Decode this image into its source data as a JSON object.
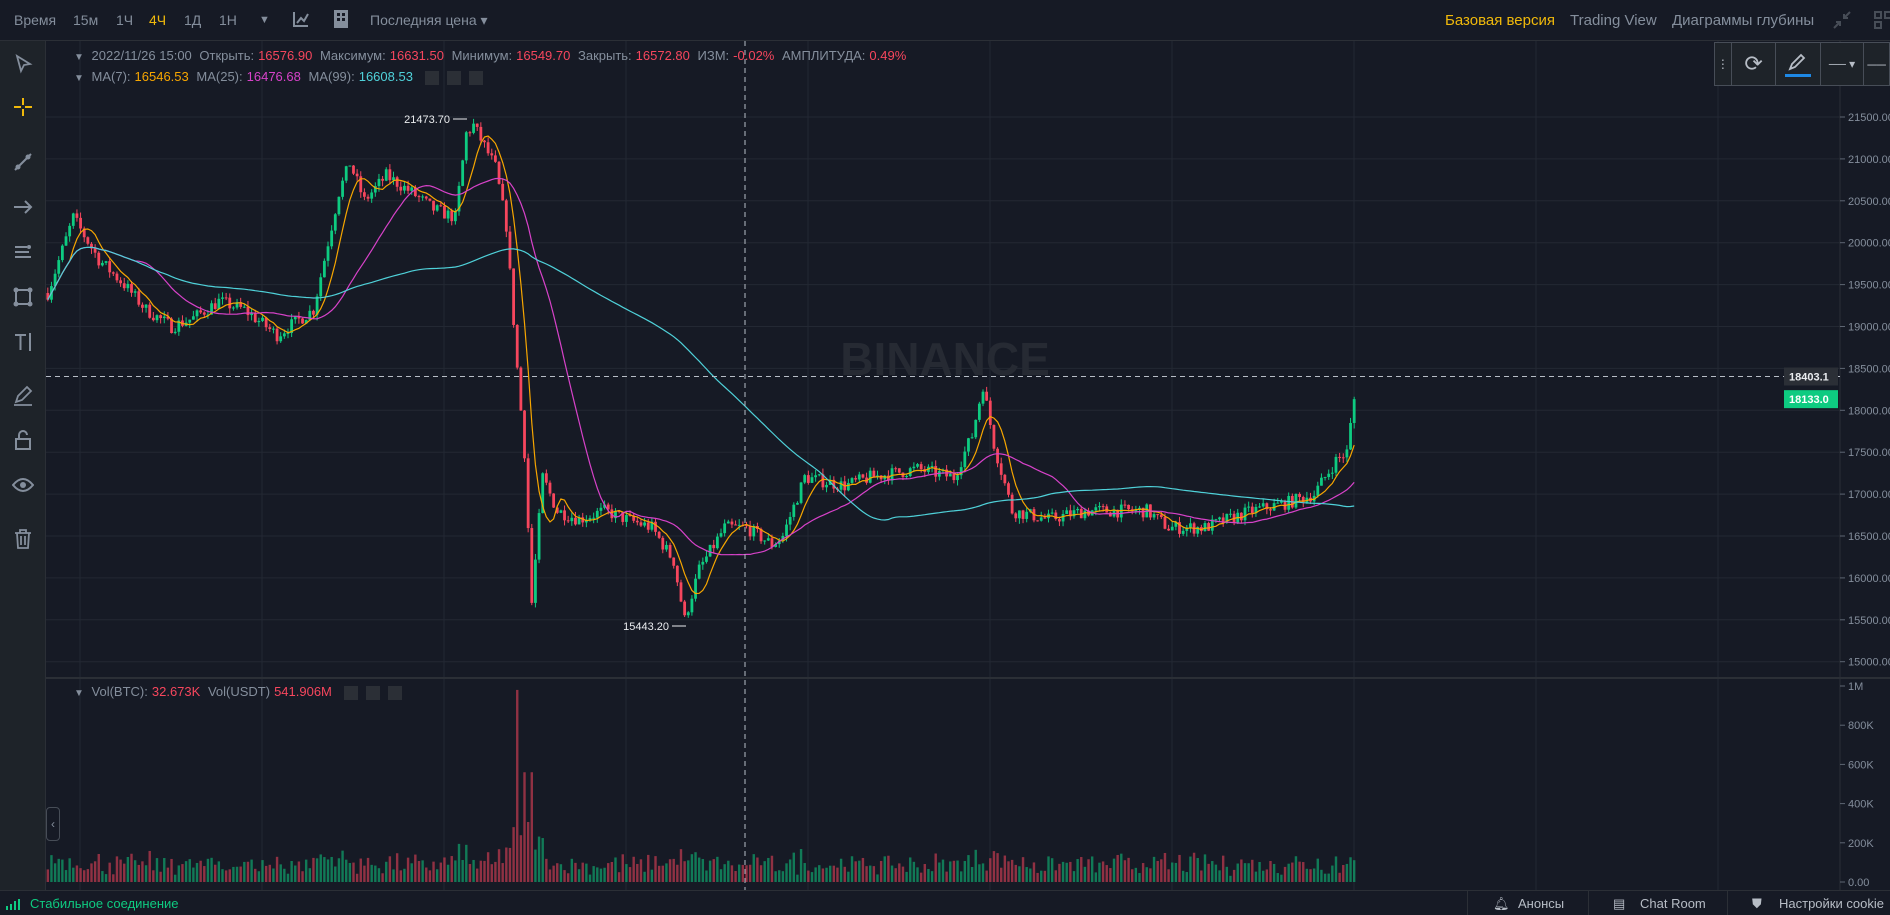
{
  "topbar": {
    "time_label": "Время",
    "intervals": [
      {
        "label": "15м"
      },
      {
        "label": "1Ч"
      },
      {
        "label": "4Ч",
        "active": true
      },
      {
        "label": "1Д"
      },
      {
        "label": "1Н"
      }
    ],
    "price_type": "Последняя цена ▾",
    "views": [
      "Базовая версия",
      "Trading View",
      "Диаграммы глубины"
    ],
    "active_view": "Базовая версия"
  },
  "ohlc": {
    "date": "2022/11/26 15:00",
    "open_label": "Открыть:",
    "open": "16576.90",
    "high_label": "Максимум:",
    "high": "16631.50",
    "low_label": "Минимум:",
    "low": "16549.70",
    "close_label": "Закрыть:",
    "close": "16572.80",
    "change_label": "ИЗМ:",
    "change": "-0.02%",
    "amp_label": "АМПЛИТУДА:",
    "amp": "0.49%"
  },
  "ma": {
    "ma7_label": "MA(7):",
    "ma7": "16546.53",
    "ma25_label": "MA(25):",
    "ma25": "16476.68",
    "ma99_label": "MA(99):",
    "ma99": "16608.53"
  },
  "vol": {
    "btc_label": "Vol(BTC):",
    "btc": "32.673K",
    "usdt_label": "Vol(USDT)",
    "usdt": "541.906M"
  },
  "status": {
    "connection": "Стабильное соединение",
    "announcements": "Анонсы",
    "chat": "Chat Room",
    "cookies": "Настройки cookie"
  },
  "watermark": "BINANCE",
  "colors": {
    "up": "#0ecb81",
    "down": "#f6465d",
    "ma7": "#f7a600",
    "ma25": "#d742c9",
    "ma99": "#4fd1d9",
    "accent": "#f0b90b"
  },
  "chart_data": {
    "type": "candlestick",
    "price_ticks": [
      "21500.00",
      "21000.00",
      "20500.00",
      "20000.00",
      "19500.00",
      "19000.00",
      "18500.00",
      "18000.00",
      "17500.00",
      "17000.00",
      "16500.00",
      "16000.00",
      "15500.00",
      "15000.00"
    ],
    "price_range": [
      15000,
      21500
    ],
    "volume_ticks": [
      "1M",
      "800K",
      "600K",
      "400K",
      "200K",
      "0.00"
    ],
    "volume_range": [
      0,
      1000000
    ],
    "high_label": "21473.70",
    "low_label": "15443.20",
    "crosshair_price": "18403.1",
    "last_price": "18133.0",
    "close_keypoints": [
      [
        0,
        19400
      ],
      [
        7,
        20300
      ],
      [
        14,
        19800
      ],
      [
        21,
        19500
      ],
      [
        27,
        19200
      ],
      [
        34,
        19000
      ],
      [
        40,
        19100
      ],
      [
        47,
        19300
      ],
      [
        54,
        19200
      ],
      [
        63,
        18900
      ],
      [
        73,
        19200
      ],
      [
        80,
        20600
      ],
      [
        83,
        20950
      ],
      [
        87,
        20500
      ],
      [
        93,
        20800
      ],
      [
        100,
        20600
      ],
      [
        106,
        20400
      ],
      [
        112,
        20300
      ],
      [
        115,
        21300
      ],
      [
        117,
        21400
      ],
      [
        123,
        20900
      ],
      [
        126,
        20200
      ],
      [
        129,
        18500
      ],
      [
        131,
        17500
      ],
      [
        133,
        15700
      ],
      [
        136,
        17200
      ],
      [
        140,
        16800
      ],
      [
        146,
        16700
      ],
      [
        153,
        16800
      ],
      [
        159,
        16700
      ],
      [
        166,
        16600
      ],
      [
        172,
        16200
      ],
      [
        175,
        15500
      ],
      [
        179,
        16100
      ],
      [
        186,
        16600
      ],
      [
        192,
        16600
      ],
      [
        199,
        16400
      ],
      [
        202,
        16500
      ],
      [
        208,
        17200
      ],
      [
        219,
        17100
      ],
      [
        226,
        17200
      ],
      [
        239,
        17300
      ],
      [
        249,
        17200
      ],
      [
        254,
        17700
      ],
      [
        257,
        18300
      ],
      [
        260,
        17600
      ],
      [
        265,
        16800
      ],
      [
        275,
        16700
      ],
      [
        285,
        16800
      ],
      [
        302,
        16800
      ],
      [
        308,
        16600
      ],
      [
        318,
        16600
      ],
      [
        331,
        16800
      ],
      [
        341,
        16900
      ],
      [
        348,
        17000
      ],
      [
        354,
        17400
      ],
      [
        357,
        17500
      ],
      [
        359,
        18133
      ]
    ],
    "candle_count": 360
  }
}
